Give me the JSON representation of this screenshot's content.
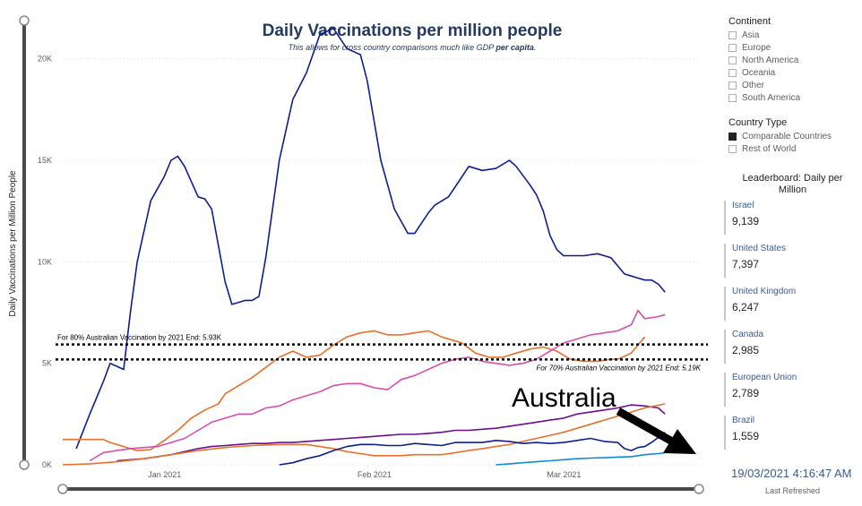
{
  "chart_data": {
    "type": "line",
    "title": "Daily Vaccinations per million people",
    "subtitle_prefix": "This allows for cross country comparisons much like GDP ",
    "subtitle_bold": "per capita",
    "subtitle_suffix": ".",
    "ylabel": "Daily Vaccinations per Million People",
    "ylim": [
      0,
      21000
    ],
    "yticks": [
      0,
      5000,
      10000,
      15000,
      20000
    ],
    "ytick_labels": [
      "0K",
      "5K",
      "10K",
      "15K",
      "20K"
    ],
    "x_day_range": [
      -14,
      80
    ],
    "x_ticks": [
      {
        "day": 0,
        "label": "Jan 2021"
      },
      {
        "day": 31,
        "label": "Feb 2021"
      },
      {
        "day": 59,
        "label": "Mar 2021"
      }
    ],
    "grid": true,
    "reference_lines": [
      {
        "label": "For 80% Australian Vaccination by 2021 End: 5.93K",
        "value": 5930
      },
      {
        "label": "For 70% Australian Vaccination by 2021 End: 5.19K",
        "value": 5190
      }
    ],
    "annotation": "Australia",
    "series": [
      {
        "color": "#0d1f8f",
        "points": [
          [
            -12,
            800
          ],
          [
            -10,
            2500
          ],
          [
            -8,
            4100
          ],
          [
            -7,
            5000
          ],
          [
            -5,
            4700
          ],
          [
            -4,
            7500
          ],
          [
            -3,
            10000
          ],
          [
            -1,
            13000
          ],
          [
            1,
            14200
          ],
          [
            2,
            15000
          ],
          [
            3,
            15200
          ],
          [
            4,
            14700
          ],
          [
            6,
            13200
          ],
          [
            7,
            13100
          ],
          [
            8,
            12600
          ],
          [
            10,
            9000
          ],
          [
            11,
            7900
          ],
          [
            13,
            8100
          ],
          [
            14,
            8100
          ],
          [
            15,
            8300
          ],
          [
            16,
            10200
          ],
          [
            18,
            15000
          ],
          [
            20,
            18000
          ],
          [
            22,
            19300
          ],
          [
            24,
            21200
          ],
          [
            26,
            21500
          ],
          [
            28,
            20500
          ],
          [
            30,
            20200
          ],
          [
            31,
            18900
          ],
          [
            33,
            15000
          ],
          [
            35,
            12600
          ],
          [
            37,
            11400
          ],
          [
            38,
            11400
          ],
          [
            40,
            12400
          ],
          [
            41,
            12800
          ],
          [
            43,
            13200
          ],
          [
            44,
            13700
          ],
          [
            46,
            14700
          ],
          [
            48,
            14500
          ],
          [
            50,
            14600
          ],
          [
            52,
            15000
          ],
          [
            53,
            14700
          ],
          [
            55,
            13800
          ],
          [
            56,
            13300
          ],
          [
            57,
            12500
          ],
          [
            58,
            11300
          ],
          [
            59,
            10600
          ],
          [
            60,
            10300
          ],
          [
            62,
            10300
          ],
          [
            63,
            10300
          ],
          [
            65,
            10400
          ],
          [
            66,
            10300
          ],
          [
            67,
            10200
          ],
          [
            68,
            9800
          ],
          [
            69,
            9400
          ],
          [
            70,
            9300
          ],
          [
            71,
            9200
          ],
          [
            72,
            9100
          ],
          [
            73,
            9100
          ],
          [
            74,
            8900
          ],
          [
            75,
            8500
          ]
        ]
      },
      {
        "color": "#e8702a",
        "points": [
          [
            -14,
            1250
          ],
          [
            -8,
            1250
          ],
          [
            -7,
            1100
          ],
          [
            -5,
            900
          ],
          [
            -3,
            700
          ],
          [
            -1,
            750
          ],
          [
            1,
            1200
          ],
          [
            3,
            1700
          ],
          [
            5,
            2300
          ],
          [
            7,
            2700
          ],
          [
            9,
            3000
          ],
          [
            10,
            3500
          ],
          [
            12,
            3900
          ],
          [
            14,
            4300
          ],
          [
            16,
            4800
          ],
          [
            18,
            5300
          ],
          [
            20,
            5600
          ],
          [
            22,
            5300
          ],
          [
            24,
            5400
          ],
          [
            26,
            5900
          ],
          [
            28,
            6300
          ],
          [
            30,
            6500
          ],
          [
            32,
            6600
          ],
          [
            34,
            6400
          ],
          [
            36,
            6400
          ],
          [
            38,
            6500
          ],
          [
            40,
            6600
          ],
          [
            42,
            6300
          ],
          [
            44,
            6100
          ],
          [
            45,
            6000
          ],
          [
            47,
            5500
          ],
          [
            49,
            5300
          ],
          [
            51,
            5300
          ],
          [
            53,
            5500
          ],
          [
            55,
            5700
          ],
          [
            57,
            5800
          ],
          [
            59,
            5600
          ],
          [
            61,
            5200
          ],
          [
            63,
            5100
          ],
          [
            65,
            5100
          ],
          [
            67,
            5200
          ],
          [
            68,
            5200
          ],
          [
            70,
            5500
          ],
          [
            71,
            5900
          ],
          [
            72,
            6300
          ]
        ]
      },
      {
        "color": "#d94fac",
        "points": [
          [
            -10,
            200
          ],
          [
            -8,
            600
          ],
          [
            -6,
            700
          ],
          [
            -4,
            800
          ],
          [
            -2,
            850
          ],
          [
            0,
            900
          ],
          [
            2,
            1100
          ],
          [
            4,
            1300
          ],
          [
            6,
            1700
          ],
          [
            8,
            2100
          ],
          [
            10,
            2300
          ],
          [
            12,
            2500
          ],
          [
            14,
            2500
          ],
          [
            16,
            2800
          ],
          [
            18,
            2900
          ],
          [
            20,
            3200
          ],
          [
            22,
            3400
          ],
          [
            24,
            3600
          ],
          [
            26,
            3900
          ],
          [
            28,
            4000
          ],
          [
            30,
            4000
          ],
          [
            32,
            3800
          ],
          [
            34,
            3700
          ],
          [
            36,
            4200
          ],
          [
            38,
            4400
          ],
          [
            40,
            4700
          ],
          [
            42,
            5000
          ],
          [
            44,
            5200
          ],
          [
            46,
            5300
          ],
          [
            48,
            5100
          ],
          [
            50,
            5000
          ],
          [
            52,
            4900
          ],
          [
            54,
            5000
          ],
          [
            56,
            5200
          ],
          [
            58,
            5600
          ],
          [
            60,
            6000
          ],
          [
            62,
            6200
          ],
          [
            64,
            6400
          ],
          [
            66,
            6500
          ],
          [
            68,
            6600
          ],
          [
            70,
            6900
          ],
          [
            71,
            7600
          ],
          [
            72,
            7200
          ],
          [
            74,
            7300
          ],
          [
            75,
            7400
          ]
        ]
      },
      {
        "color": "#6b0f8f",
        "points": [
          [
            -6,
            200
          ],
          [
            -4,
            250
          ],
          [
            -2,
            300
          ],
          [
            0,
            400
          ],
          [
            2,
            500
          ],
          [
            4,
            650
          ],
          [
            6,
            800
          ],
          [
            8,
            900
          ],
          [
            10,
            950
          ],
          [
            12,
            1000
          ],
          [
            14,
            1050
          ],
          [
            16,
            1050
          ],
          [
            18,
            1100
          ],
          [
            20,
            1100
          ],
          [
            22,
            1150
          ],
          [
            24,
            1200
          ],
          [
            26,
            1250
          ],
          [
            28,
            1300
          ],
          [
            30,
            1350
          ],
          [
            32,
            1400
          ],
          [
            34,
            1450
          ],
          [
            36,
            1500
          ],
          [
            38,
            1500
          ],
          [
            40,
            1550
          ],
          [
            42,
            1600
          ],
          [
            44,
            1700
          ],
          [
            46,
            1700
          ],
          [
            48,
            1750
          ],
          [
            50,
            1800
          ],
          [
            52,
            1900
          ],
          [
            54,
            2000
          ],
          [
            56,
            2100
          ],
          [
            58,
            2200
          ],
          [
            60,
            2300
          ],
          [
            62,
            2500
          ],
          [
            64,
            2600
          ],
          [
            66,
            2700
          ],
          [
            68,
            2800
          ],
          [
            70,
            2950
          ],
          [
            72,
            2900
          ],
          [
            74,
            2800
          ],
          [
            75,
            2500
          ]
        ]
      },
      {
        "color": "#e8702a",
        "points": [
          [
            -14,
            0
          ],
          [
            -10,
            50
          ],
          [
            -6,
            150
          ],
          [
            -2,
            300
          ],
          [
            2,
            500
          ],
          [
            6,
            700
          ],
          [
            10,
            850
          ],
          [
            14,
            950
          ],
          [
            18,
            1000
          ],
          [
            22,
            1000
          ],
          [
            24,
            900
          ],
          [
            26,
            800
          ],
          [
            28,
            650
          ],
          [
            30,
            550
          ],
          [
            32,
            450
          ],
          [
            34,
            450
          ],
          [
            36,
            450
          ],
          [
            38,
            500
          ],
          [
            40,
            500
          ],
          [
            42,
            500
          ],
          [
            44,
            600
          ],
          [
            46,
            700
          ],
          [
            48,
            800
          ],
          [
            50,
            900
          ],
          [
            52,
            1000
          ],
          [
            54,
            1150
          ],
          [
            56,
            1300
          ],
          [
            58,
            1450
          ],
          [
            60,
            1600
          ],
          [
            62,
            1800
          ],
          [
            64,
            2000
          ],
          [
            66,
            2200
          ],
          [
            68,
            2400
          ],
          [
            70,
            2600
          ],
          [
            72,
            2800
          ],
          [
            75,
            3000
          ]
        ]
      },
      {
        "color": "#0d1f8f",
        "points": [
          [
            18,
            0
          ],
          [
            20,
            100
          ],
          [
            22,
            300
          ],
          [
            24,
            450
          ],
          [
            26,
            700
          ],
          [
            28,
            900
          ],
          [
            30,
            1000
          ],
          [
            32,
            1000
          ],
          [
            34,
            950
          ],
          [
            36,
            950
          ],
          [
            38,
            1050
          ],
          [
            40,
            1000
          ],
          [
            42,
            950
          ],
          [
            44,
            1100
          ],
          [
            46,
            1100
          ],
          [
            48,
            1100
          ],
          [
            50,
            1200
          ],
          [
            52,
            1150
          ],
          [
            54,
            1050
          ],
          [
            56,
            1100
          ],
          [
            58,
            1050
          ],
          [
            60,
            1100
          ],
          [
            62,
            1200
          ],
          [
            64,
            1300
          ],
          [
            66,
            1150
          ],
          [
            68,
            1100
          ],
          [
            69,
            800
          ],
          [
            70,
            700
          ],
          [
            71,
            850
          ],
          [
            72,
            900
          ],
          [
            73,
            1100
          ],
          [
            75,
            1600
          ]
        ]
      },
      {
        "color": "#0f8ad6",
        "points": [
          [
            50,
            0
          ],
          [
            52,
            50
          ],
          [
            54,
            100
          ],
          [
            56,
            150
          ],
          [
            58,
            200
          ],
          [
            60,
            250
          ],
          [
            62,
            300
          ],
          [
            64,
            330
          ],
          [
            66,
            350
          ],
          [
            68,
            380
          ],
          [
            70,
            400
          ],
          [
            71,
            450
          ],
          [
            72,
            500
          ],
          [
            74,
            550
          ],
          [
            75,
            600
          ]
        ]
      }
    ]
  },
  "filters": {
    "continent_title": "Continent",
    "continents": [
      "Asia",
      "Europe",
      "North America",
      "Oceania",
      "Other",
      "South America"
    ],
    "country_type_title": "Country Type",
    "country_types": [
      {
        "label": "Comparable Countries",
        "checked": true
      },
      {
        "label": "Rest of World",
        "checked": false
      }
    ]
  },
  "leaderboard": {
    "title": "Leaderboard: Daily per Million",
    "items": [
      {
        "name": "Israel",
        "value": "9,139"
      },
      {
        "name": "United States",
        "value": "7,397"
      },
      {
        "name": "United Kingdom",
        "value": "6,247"
      },
      {
        "name": "Canada",
        "value": "2,985"
      },
      {
        "name": "European Union",
        "value": "2,789"
      },
      {
        "name": "Brazil",
        "value": "1,559"
      }
    ]
  },
  "refreshed": {
    "timestamp": "19/03/2021 4:16:47 AM",
    "label": "Last Refreshed"
  }
}
